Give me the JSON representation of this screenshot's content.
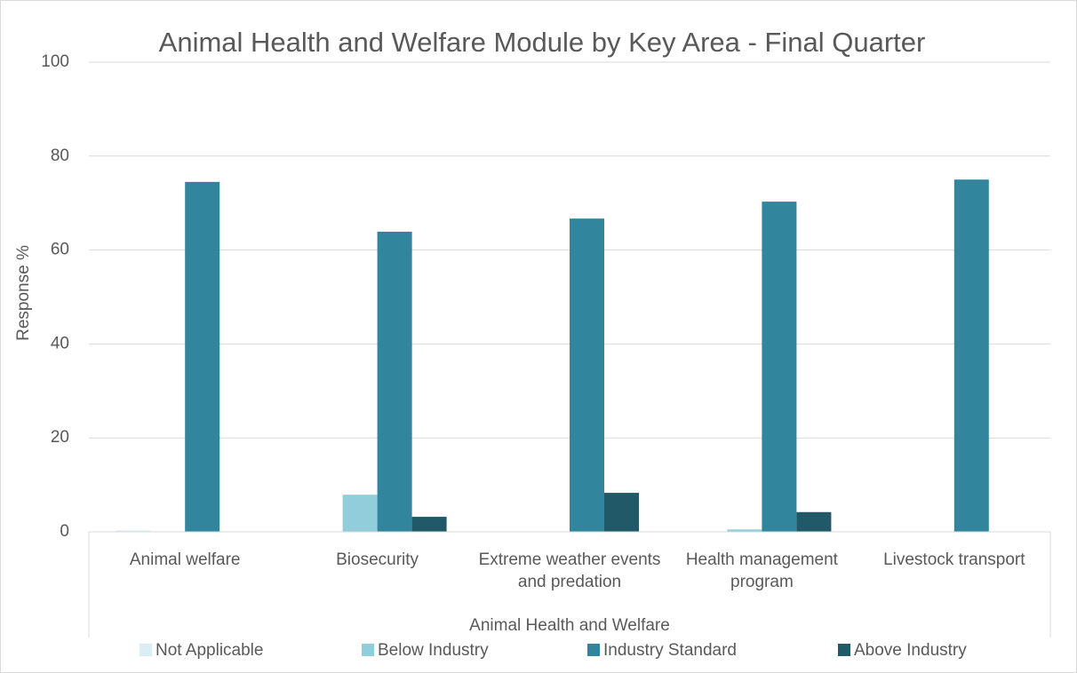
{
  "chart_data": {
    "type": "bar",
    "title": "Animal Health and Welfare Module by Key Area - Final Quarter",
    "x_label": "Animal Health and Welfare",
    "y_label": "Response %",
    "categories": [
      "Animal welfare",
      "Biosecurity",
      "Extreme weather events and predation",
      "Health management program",
      "Livestock transport"
    ],
    "series": [
      {
        "name": "Not Applicable",
        "color": "#d9eef5",
        "values": [
          0.3,
          0,
          0,
          0,
          0
        ]
      },
      {
        "name": "Below Industry",
        "color": "#92cddc",
        "values": [
          0,
          7.9,
          0,
          0.5,
          0
        ]
      },
      {
        "name": "Industry Standard",
        "color": "#31859c",
        "values": [
          74.5,
          63.9,
          66.7,
          70.3,
          75
        ]
      },
      {
        "name": "Above Industry",
        "color": "#215968",
        "values": [
          0,
          3.2,
          8.3,
          4.2,
          0
        ]
      }
    ],
    "ylim": [
      0,
      100
    ],
    "yticks": [
      0,
      20,
      40,
      60,
      80,
      100
    ],
    "grid": true,
    "legend": "bottom"
  }
}
